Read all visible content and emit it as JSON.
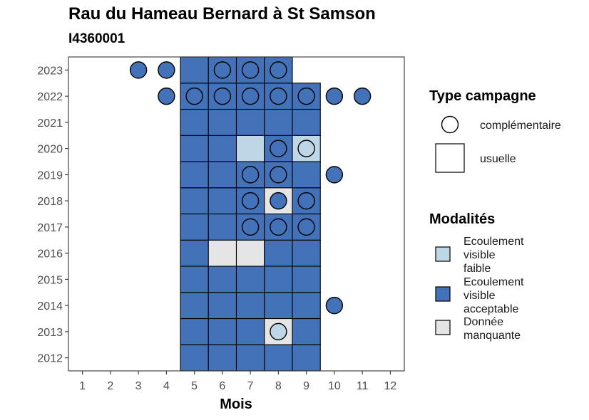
{
  "chart_data": {
    "type": "heatmap",
    "title": "Rau du Hameau Bernard à St Samson",
    "subtitle": "I4360001",
    "xlabel": "Mois",
    "ylabel": "",
    "x_ticks": [
      1,
      2,
      3,
      4,
      5,
      6,
      7,
      8,
      9,
      10,
      11,
      12
    ],
    "y_ticks": [
      2012,
      2013,
      2014,
      2015,
      2016,
      2017,
      2018,
      2019,
      2020,
      2021,
      2022,
      2023
    ],
    "xlim": [
      0.5,
      12.5
    ],
    "ylim": [
      2011.5,
      2023.5
    ],
    "grid": false,
    "colors": {
      "Ecoulement visible faible": "#bdd7e7",
      "Ecoulement visible acceptable": "#4372b8",
      "Donnée manquante": "#e5e5e5"
    },
    "legend_campaign": {
      "title": "Type campagne",
      "items": [
        {
          "label": "complémentaire",
          "shape": "circle"
        },
        {
          "label": "usuelle",
          "shape": "square"
        }
      ]
    },
    "legend_modalites": {
      "title": "Modalités",
      "items": [
        {
          "key": "Ecoulement visible faible",
          "lines": [
            "Ecoulement",
            "visible",
            "faible"
          ]
        },
        {
          "key": "Ecoulement visible acceptable",
          "lines": [
            "Ecoulement",
            "visible",
            "acceptable"
          ]
        },
        {
          "key": "Donnée manquante",
          "lines": [
            "Donnée",
            "manquante"
          ]
        }
      ]
    },
    "series": [
      {
        "name": "usuelle",
        "points": [
          {
            "year": 2012,
            "month": 5,
            "value": "Ecoulement visible acceptable"
          },
          {
            "year": 2012,
            "month": 6,
            "value": "Ecoulement visible acceptable"
          },
          {
            "year": 2012,
            "month": 7,
            "value": "Ecoulement visible acceptable"
          },
          {
            "year": 2012,
            "month": 8,
            "value": "Ecoulement visible acceptable"
          },
          {
            "year": 2012,
            "month": 9,
            "value": "Ecoulement visible acceptable"
          },
          {
            "year": 2013,
            "month": 5,
            "value": "Ecoulement visible acceptable"
          },
          {
            "year": 2013,
            "month": 6,
            "value": "Ecoulement visible acceptable"
          },
          {
            "year": 2013,
            "month": 7,
            "value": "Ecoulement visible acceptable"
          },
          {
            "year": 2013,
            "month": 8,
            "value": "Donnée manquante"
          },
          {
            "year": 2013,
            "month": 9,
            "value": "Ecoulement visible acceptable"
          },
          {
            "year": 2014,
            "month": 5,
            "value": "Ecoulement visible acceptable"
          },
          {
            "year": 2014,
            "month": 6,
            "value": "Ecoulement visible acceptable"
          },
          {
            "year": 2014,
            "month": 7,
            "value": "Ecoulement visible acceptable"
          },
          {
            "year": 2014,
            "month": 8,
            "value": "Ecoulement visible acceptable"
          },
          {
            "year": 2014,
            "month": 9,
            "value": "Ecoulement visible acceptable"
          },
          {
            "year": 2015,
            "month": 5,
            "value": "Ecoulement visible acceptable"
          },
          {
            "year": 2015,
            "month": 6,
            "value": "Ecoulement visible acceptable"
          },
          {
            "year": 2015,
            "month": 7,
            "value": "Ecoulement visible acceptable"
          },
          {
            "year": 2015,
            "month": 8,
            "value": "Ecoulement visible acceptable"
          },
          {
            "year": 2015,
            "month": 9,
            "value": "Ecoulement visible acceptable"
          },
          {
            "year": 2016,
            "month": 5,
            "value": "Ecoulement visible acceptable"
          },
          {
            "year": 2016,
            "month": 6,
            "value": "Donnée manquante"
          },
          {
            "year": 2016,
            "month": 7,
            "value": "Donnée manquante"
          },
          {
            "year": 2016,
            "month": 8,
            "value": "Ecoulement visible acceptable"
          },
          {
            "year": 2016,
            "month": 9,
            "value": "Ecoulement visible acceptable"
          },
          {
            "year": 2017,
            "month": 5,
            "value": "Ecoulement visible acceptable"
          },
          {
            "year": 2017,
            "month": 6,
            "value": "Ecoulement visible acceptable"
          },
          {
            "year": 2017,
            "month": 7,
            "value": "Ecoulement visible acceptable"
          },
          {
            "year": 2017,
            "month": 8,
            "value": "Ecoulement visible acceptable"
          },
          {
            "year": 2017,
            "month": 9,
            "value": "Ecoulement visible acceptable"
          },
          {
            "year": 2018,
            "month": 5,
            "value": "Ecoulement visible acceptable"
          },
          {
            "year": 2018,
            "month": 6,
            "value": "Ecoulement visible acceptable"
          },
          {
            "year": 2018,
            "month": 7,
            "value": "Ecoulement visible acceptable"
          },
          {
            "year": 2018,
            "month": 8,
            "value": "Donnée manquante"
          },
          {
            "year": 2018,
            "month": 9,
            "value": "Ecoulement visible acceptable"
          },
          {
            "year": 2019,
            "month": 5,
            "value": "Ecoulement visible acceptable"
          },
          {
            "year": 2019,
            "month": 6,
            "value": "Ecoulement visible acceptable"
          },
          {
            "year": 2019,
            "month": 7,
            "value": "Ecoulement visible acceptable"
          },
          {
            "year": 2019,
            "month": 8,
            "value": "Ecoulement visible acceptable"
          },
          {
            "year": 2019,
            "month": 9,
            "value": "Ecoulement visible acceptable"
          },
          {
            "year": 2020,
            "month": 5,
            "value": "Ecoulement visible acceptable"
          },
          {
            "year": 2020,
            "month": 6,
            "value": "Ecoulement visible acceptable"
          },
          {
            "year": 2020,
            "month": 7,
            "value": "Ecoulement visible faible"
          },
          {
            "year": 2020,
            "month": 8,
            "value": "Ecoulement visible acceptable"
          },
          {
            "year": 2020,
            "month": 9,
            "value": "Ecoulement visible faible"
          },
          {
            "year": 2021,
            "month": 5,
            "value": "Ecoulement visible acceptable"
          },
          {
            "year": 2021,
            "month": 6,
            "value": "Ecoulement visible acceptable"
          },
          {
            "year": 2021,
            "month": 7,
            "value": "Ecoulement visible acceptable"
          },
          {
            "year": 2021,
            "month": 8,
            "value": "Ecoulement visible acceptable"
          },
          {
            "year": 2021,
            "month": 9,
            "value": "Ecoulement visible acceptable"
          },
          {
            "year": 2022,
            "month": 5,
            "value": "Ecoulement visible acceptable"
          },
          {
            "year": 2022,
            "month": 6,
            "value": "Ecoulement visible acceptable"
          },
          {
            "year": 2022,
            "month": 7,
            "value": "Ecoulement visible acceptable"
          },
          {
            "year": 2022,
            "month": 8,
            "value": "Ecoulement visible acceptable"
          },
          {
            "year": 2022,
            "month": 9,
            "value": "Ecoulement visible acceptable"
          },
          {
            "year": 2023,
            "month": 5,
            "value": "Ecoulement visible acceptable"
          },
          {
            "year": 2023,
            "month": 6,
            "value": "Ecoulement visible acceptable"
          },
          {
            "year": 2023,
            "month": 7,
            "value": "Ecoulement visible acceptable"
          },
          {
            "year": 2023,
            "month": 8,
            "value": "Ecoulement visible acceptable"
          }
        ]
      },
      {
        "name": "complémentaire",
        "points": [
          {
            "year": 2013,
            "month": 8,
            "value": "Ecoulement visible faible"
          },
          {
            "year": 2014,
            "month": 10,
            "value": "Ecoulement visible acceptable"
          },
          {
            "year": 2017,
            "month": 7,
            "value": "Ecoulement visible acceptable"
          },
          {
            "year": 2017,
            "month": 8,
            "value": "Ecoulement visible acceptable"
          },
          {
            "year": 2017,
            "month": 9,
            "value": "Ecoulement visible acceptable"
          },
          {
            "year": 2018,
            "month": 7,
            "value": "Ecoulement visible acceptable"
          },
          {
            "year": 2018,
            "month": 8,
            "value": "Ecoulement visible acceptable"
          },
          {
            "year": 2018,
            "month": 9,
            "value": "Ecoulement visible acceptable"
          },
          {
            "year": 2019,
            "month": 7,
            "value": "Ecoulement visible acceptable"
          },
          {
            "year": 2019,
            "month": 8,
            "value": "Ecoulement visible acceptable"
          },
          {
            "year": 2019,
            "month": 10,
            "value": "Ecoulement visible acceptable"
          },
          {
            "year": 2020,
            "month": 8,
            "value": "Ecoulement visible acceptable"
          },
          {
            "year": 2020,
            "month": 9,
            "value": "Ecoulement visible faible"
          },
          {
            "year": 2022,
            "month": 4,
            "value": "Ecoulement visible acceptable"
          },
          {
            "year": 2022,
            "month": 5,
            "value": "Ecoulement visible acceptable"
          },
          {
            "year": 2022,
            "month": 6,
            "value": "Ecoulement visible acceptable"
          },
          {
            "year": 2022,
            "month": 7,
            "value": "Ecoulement visible acceptable"
          },
          {
            "year": 2022,
            "month": 8,
            "value": "Ecoulement visible acceptable"
          },
          {
            "year": 2022,
            "month": 9,
            "value": "Ecoulement visible acceptable"
          },
          {
            "year": 2022,
            "month": 10,
            "value": "Ecoulement visible acceptable"
          },
          {
            "year": 2022,
            "month": 11,
            "value": "Ecoulement visible acceptable"
          },
          {
            "year": 2023,
            "month": 3,
            "value": "Ecoulement visible acceptable"
          },
          {
            "year": 2023,
            "month": 4,
            "value": "Ecoulement visible acceptable"
          },
          {
            "year": 2023,
            "month": 6,
            "value": "Ecoulement visible acceptable"
          },
          {
            "year": 2023,
            "month": 7,
            "value": "Ecoulement visible acceptable"
          },
          {
            "year": 2023,
            "month": 8,
            "value": "Ecoulement visible acceptable"
          }
        ]
      }
    ]
  }
}
